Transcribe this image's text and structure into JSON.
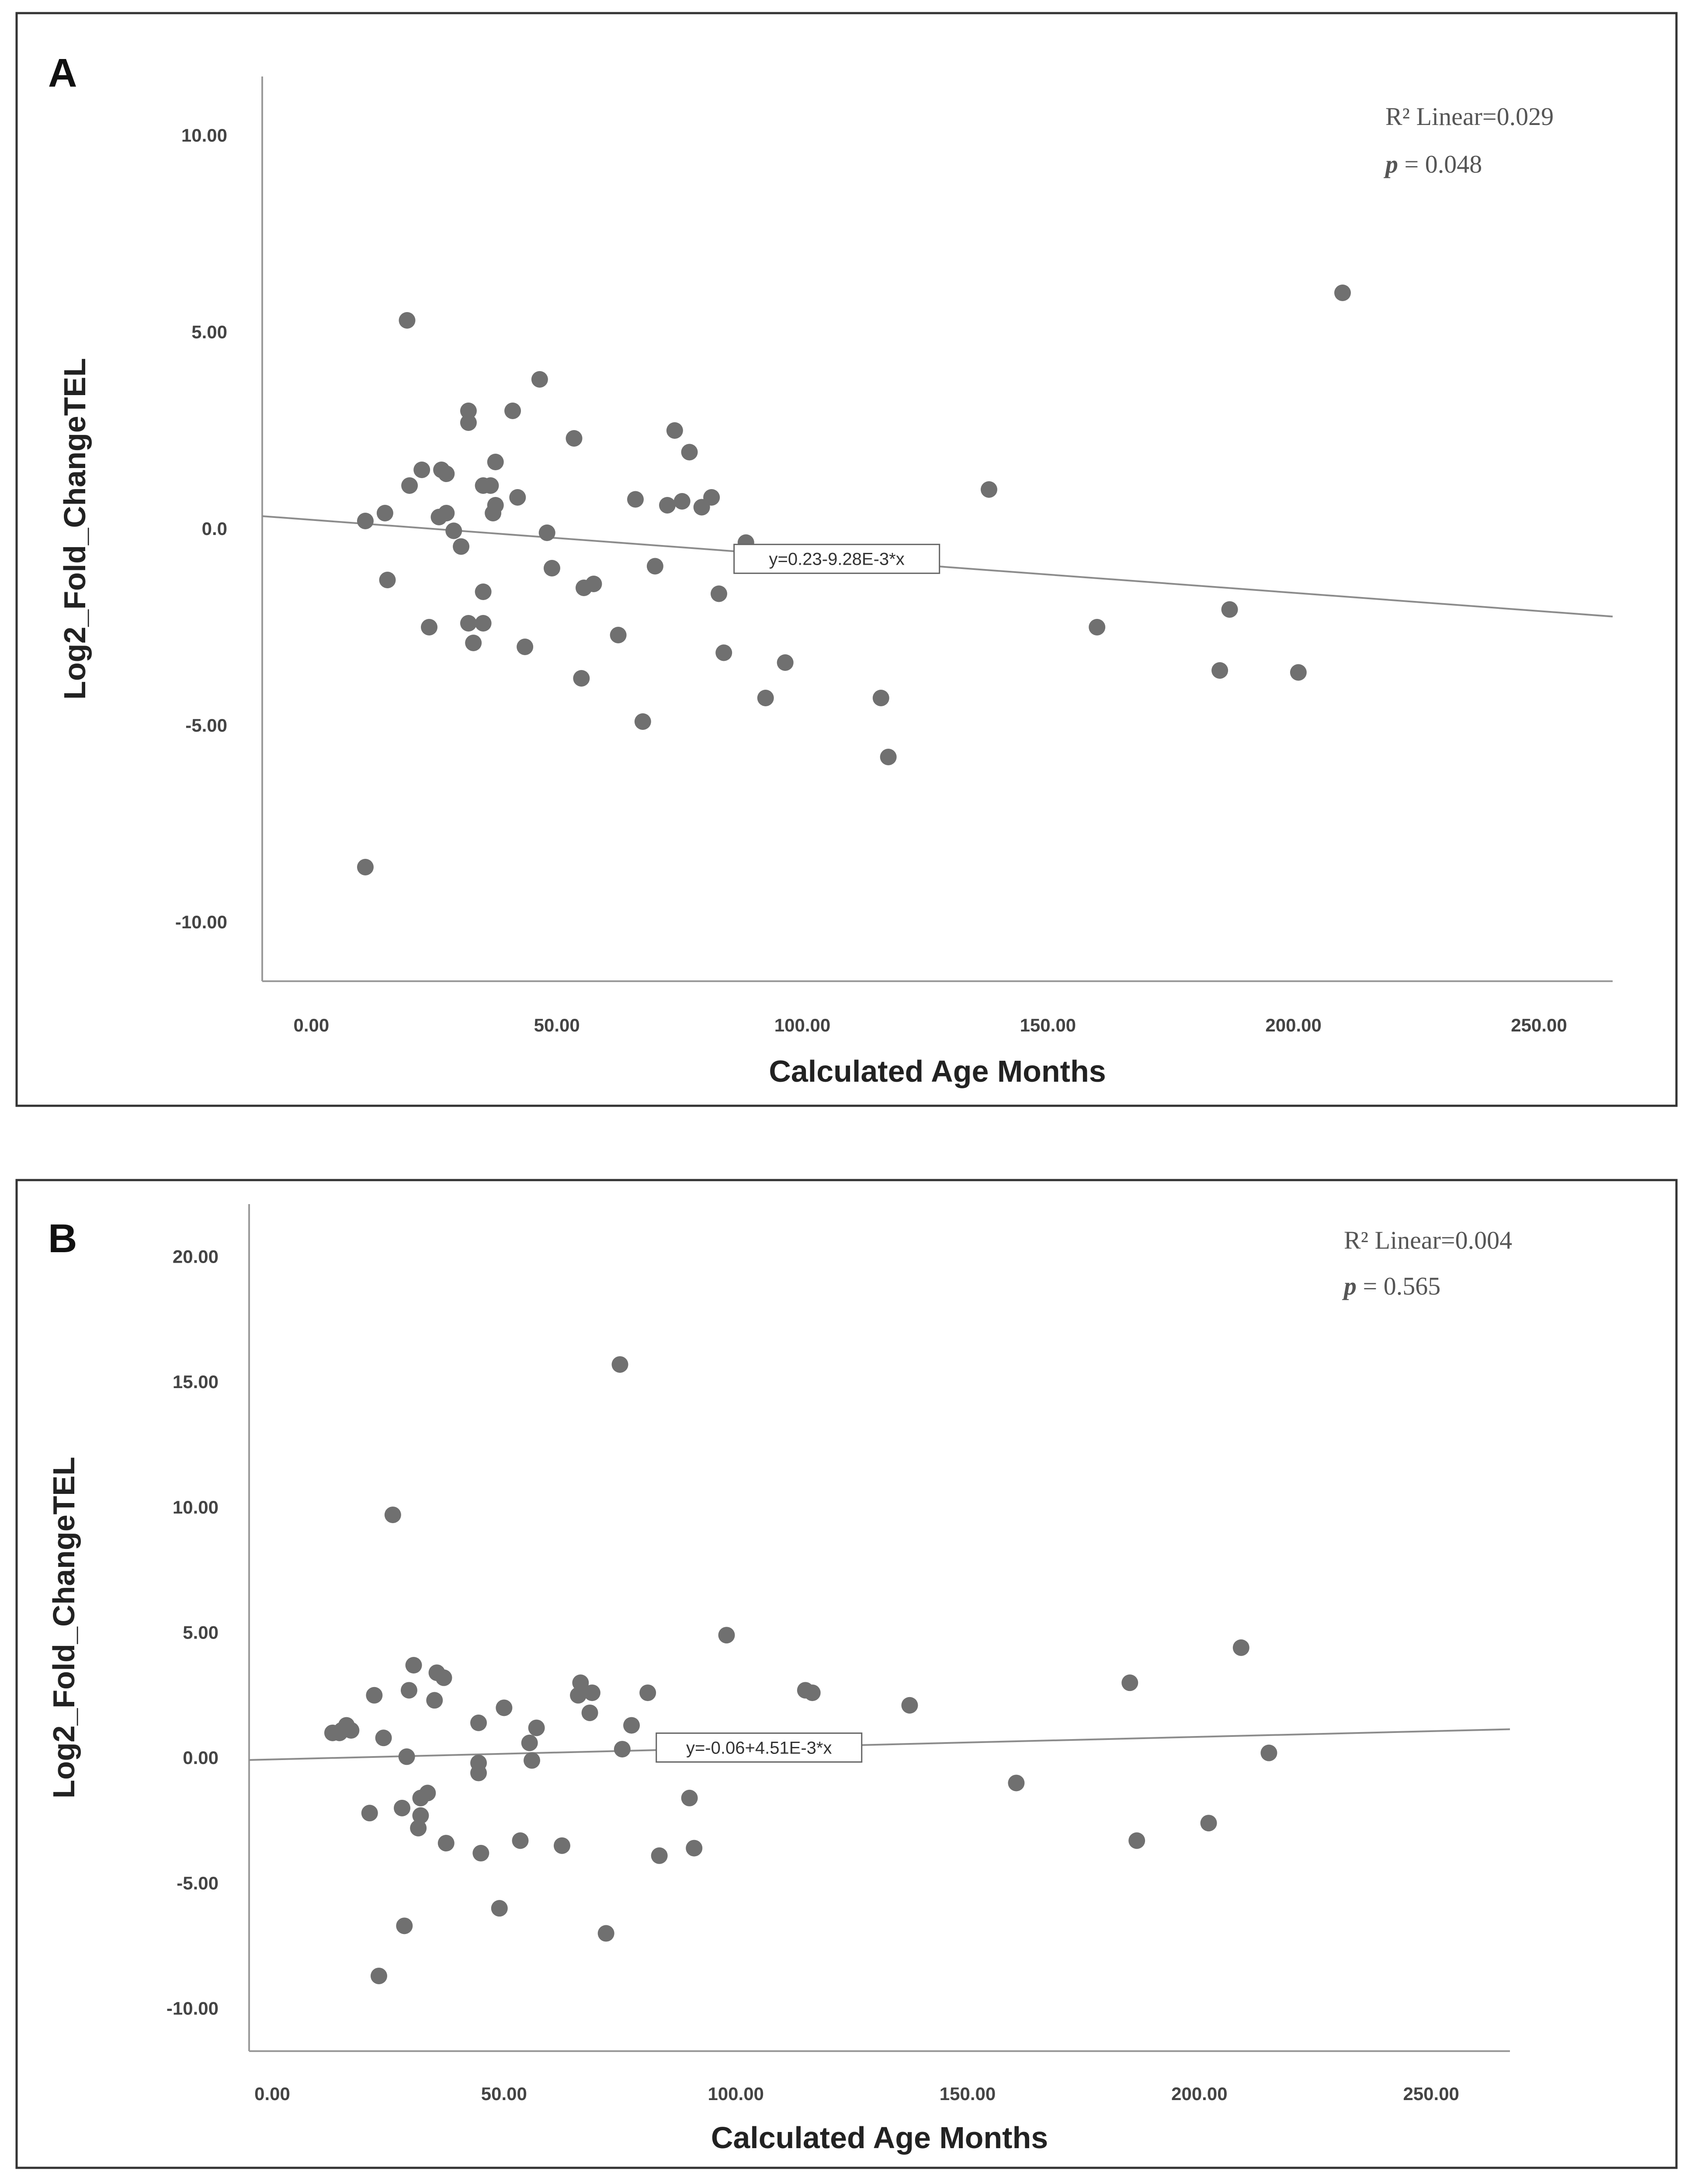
{
  "colors": {
    "point": "#707070",
    "axis": "#9a9a9a",
    "fit": "#8c8c8c",
    "frame": "#333333"
  },
  "chart_data": [
    {
      "type": "scatter",
      "panel_label": "A",
      "xlabel": "Calculated Age Months",
      "ylabel": "Log2_Fold_ChangeTEL",
      "x_ticks": [
        "0.00",
        "50.00",
        "100.00",
        "150.00",
        "200.00",
        "250.00"
      ],
      "y_ticks": [
        "10.00",
        "5.00",
        "0.0",
        "-5.00",
        "-10.00"
      ],
      "xlim": [
        -10,
        265
      ],
      "ylim": [
        -11.5,
        11.5
      ],
      "stats": {
        "r2": "R² Linear=0.029",
        "p_italic": "p",
        "p_value": " = 0.048"
      },
      "fit": {
        "equation": "y=0.23-9.28E-3*x",
        "intercept": 0.23,
        "slope": -0.00928,
        "label_x": 107
      },
      "points": [
        [
          11,
          0.2
        ],
        [
          11,
          -8.6
        ],
        [
          15,
          0.4
        ],
        [
          15.5,
          -1.3
        ],
        [
          19.5,
          5.3
        ],
        [
          20,
          1.1
        ],
        [
          22.5,
          1.5
        ],
        [
          24,
          -2.5
        ],
        [
          26,
          0.3
        ],
        [
          26.5,
          1.5
        ],
        [
          27.5,
          1.4
        ],
        [
          27.5,
          0.4
        ],
        [
          29,
          -0.05
        ],
        [
          30.5,
          -0.45
        ],
        [
          32,
          -2.4
        ],
        [
          32,
          3.0
        ],
        [
          32,
          2.7
        ],
        [
          33,
          -2.9
        ],
        [
          35,
          -2.4
        ],
        [
          35,
          -1.6
        ],
        [
          35,
          1.1
        ],
        [
          36.5,
          1.1
        ],
        [
          37,
          0.4
        ],
        [
          37.5,
          1.7
        ],
        [
          37.5,
          0.6
        ],
        [
          41,
          3.0
        ],
        [
          42,
          0.8
        ],
        [
          43.5,
          -3.0
        ],
        [
          46.5,
          3.8
        ],
        [
          48,
          -0.1
        ],
        [
          49,
          -1.0
        ],
        [
          53.5,
          2.3
        ],
        [
          55,
          -3.8
        ],
        [
          55.5,
          -1.5
        ],
        [
          57.5,
          -1.4
        ],
        [
          62.5,
          -2.7
        ],
        [
          66,
          0.75
        ],
        [
          67.5,
          -4.9
        ],
        [
          70,
          -0.95
        ],
        [
          72.5,
          0.6
        ],
        [
          74,
          2.5
        ],
        [
          75.5,
          0.7
        ],
        [
          77,
          1.95
        ],
        [
          79.5,
          0.55
        ],
        [
          81.5,
          0.8
        ],
        [
          83,
          -1.65
        ],
        [
          84,
          -3.15
        ],
        [
          88.5,
          -0.35
        ],
        [
          92.5,
          -4.3
        ],
        [
          96.5,
          -3.4
        ],
        [
          116,
          -4.3
        ],
        [
          117.5,
          -5.8
        ],
        [
          138,
          1.0
        ],
        [
          160,
          -2.5
        ],
        [
          185,
          -3.6
        ],
        [
          187,
          -2.05
        ],
        [
          201,
          -3.65
        ],
        [
          210,
          6.0
        ]
      ]
    },
    {
      "type": "scatter",
      "panel_label": "B",
      "xlabel": "Calculated Age Months",
      "ylabel": "Log2_Fold_ChangeTEL",
      "x_ticks": [
        "0.00",
        "50.00",
        "100.00",
        "150.00",
        "200.00",
        "250.00"
      ],
      "y_ticks": [
        "20.00",
        "15.00",
        "10.00",
        "5.00",
        "0.00",
        "-5.00",
        "-10.00"
      ],
      "xlim": [
        -5,
        267
      ],
      "ylim": [
        -11.7,
        22.1
      ],
      "stats": {
        "r2": "R² Linear=0.004",
        "p_italic": "p",
        "p_value": " = 0.565"
      },
      "fit": {
        "equation": "y=-0.06+4.51E-3*x",
        "intercept": -0.06,
        "slope": 0.00451,
        "label_x": 105
      },
      "points": [
        [
          13,
          1.0
        ],
        [
          14.5,
          1.0
        ],
        [
          15,
          1.1
        ],
        [
          16,
          1.3
        ],
        [
          17,
          1.1
        ],
        [
          21,
          -2.2
        ],
        [
          22,
          2.5
        ],
        [
          23,
          -8.7
        ],
        [
          24,
          0.8
        ],
        [
          26,
          9.7
        ],
        [
          28,
          -2.0
        ],
        [
          28.5,
          -6.7
        ],
        [
          29,
          0.05
        ],
        [
          29.5,
          2.7
        ],
        [
          30.5,
          3.7
        ],
        [
          31.5,
          -2.8
        ],
        [
          32,
          -1.6
        ],
        [
          32,
          -2.3
        ],
        [
          33.5,
          -1.4
        ],
        [
          35,
          2.3
        ],
        [
          35.5,
          3.4
        ],
        [
          37,
          3.2
        ],
        [
          37.5,
          -3.4
        ],
        [
          44.5,
          1.4
        ],
        [
          44.5,
          -0.2
        ],
        [
          44.5,
          -0.6
        ],
        [
          45,
          -3.8
        ],
        [
          49,
          -6.0
        ],
        [
          50,
          2.0
        ],
        [
          53.5,
          -3.3
        ],
        [
          55.5,
          0.6
        ],
        [
          56,
          -0.1
        ],
        [
          57,
          1.2
        ],
        [
          62.5,
          -3.5
        ],
        [
          66,
          2.5
        ],
        [
          66.5,
          3.0
        ],
        [
          68.5,
          1.8
        ],
        [
          69,
          2.6
        ],
        [
          72,
          -7.0
        ],
        [
          75,
          15.7
        ],
        [
          75.5,
          0.35
        ],
        [
          77.5,
          1.3
        ],
        [
          81,
          2.6
        ],
        [
          83.5,
          -3.9
        ],
        [
          90,
          -1.6
        ],
        [
          91,
          -3.6
        ],
        [
          98,
          4.9
        ],
        [
          115,
          2.7
        ],
        [
          116.5,
          2.6
        ],
        [
          137.5,
          2.1
        ],
        [
          160.5,
          -1.0
        ],
        [
          185,
          3.0
        ],
        [
          186.5,
          -3.3
        ],
        [
          202,
          -2.6
        ],
        [
          209,
          4.4
        ],
        [
          215,
          0.2
        ]
      ]
    }
  ]
}
